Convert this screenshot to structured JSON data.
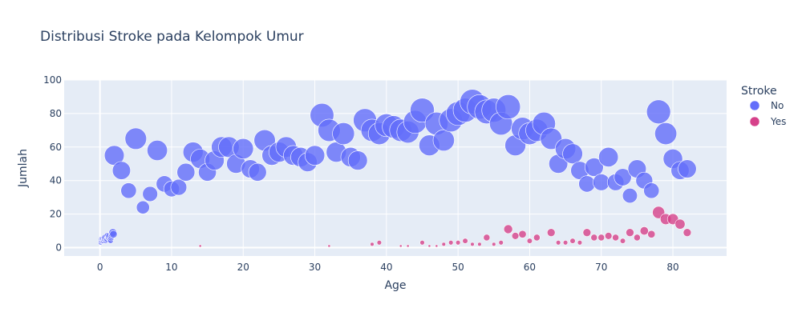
{
  "chart_data": {
    "type": "scatter",
    "title": "Distribusi Stroke pada Kelompok Umur",
    "xlabel": "Age",
    "ylabel": "Jumlah",
    "xlim": [
      -5,
      87.5
    ],
    "ylim": [
      -5,
      100
    ],
    "xticks": [
      0,
      10,
      20,
      30,
      40,
      50,
      60,
      70,
      80
    ],
    "yticks": [
      0,
      20,
      40,
      60,
      80,
      100
    ],
    "grid": true,
    "legend_title": "Stroke",
    "legend_position": "right",
    "series": [
      {
        "name": "No",
        "color": "#636efa",
        "points": [
          [
            0.08,
            3
          ],
          [
            0.16,
            4
          ],
          [
            0.24,
            5
          ],
          [
            0.32,
            4
          ],
          [
            0.4,
            5
          ],
          [
            0.48,
            4
          ],
          [
            0.56,
            5
          ],
          [
            0.64,
            5
          ],
          [
            0.72,
            6
          ],
          [
            0.8,
            4
          ],
          [
            0.88,
            5
          ],
          [
            1,
            5
          ],
          [
            1.08,
            7
          ],
          [
            1.16,
            6
          ],
          [
            1.24,
            6
          ],
          [
            1.32,
            7
          ],
          [
            1.4,
            5
          ],
          [
            1.48,
            4
          ],
          [
            1.56,
            6
          ],
          [
            1.64,
            7
          ],
          [
            1.72,
            8
          ],
          [
            1.8,
            9
          ],
          [
            1.88,
            8
          ],
          [
            2,
            55
          ],
          [
            3,
            46
          ],
          [
            4,
            34
          ],
          [
            5,
            65
          ],
          [
            6,
            24
          ],
          [
            7,
            32
          ],
          [
            8,
            58
          ],
          [
            9,
            38
          ],
          [
            10,
            35
          ],
          [
            11,
            36
          ],
          [
            12,
            45
          ],
          [
            13,
            57
          ],
          [
            14,
            53
          ],
          [
            15,
            45
          ],
          [
            16,
            52
          ],
          [
            17,
            60
          ],
          [
            18,
            60
          ],
          [
            19,
            50
          ],
          [
            20,
            59
          ],
          [
            21,
            47
          ],
          [
            22,
            45
          ],
          [
            23,
            64
          ],
          [
            24,
            55
          ],
          [
            25,
            57
          ],
          [
            26,
            60
          ],
          [
            27,
            55
          ],
          [
            28,
            54
          ],
          [
            29,
            51
          ],
          [
            30,
            55
          ],
          [
            31,
            79
          ],
          [
            32,
            70
          ],
          [
            33,
            57
          ],
          [
            34,
            68
          ],
          [
            35,
            54
          ],
          [
            36,
            52
          ],
          [
            37,
            76
          ],
          [
            38,
            70
          ],
          [
            39,
            68
          ],
          [
            40,
            73
          ],
          [
            41,
            72
          ],
          [
            42,
            70
          ],
          [
            43,
            69
          ],
          [
            44,
            75
          ],
          [
            45,
            82
          ],
          [
            46,
            61
          ],
          [
            47,
            74
          ],
          [
            48,
            64
          ],
          [
            49,
            76
          ],
          [
            50,
            80
          ],
          [
            51,
            82
          ],
          [
            52,
            87
          ],
          [
            53,
            84
          ],
          [
            54,
            81
          ],
          [
            55,
            82
          ],
          [
            56,
            74
          ],
          [
            57,
            84
          ],
          [
            58,
            61
          ],
          [
            59,
            71
          ],
          [
            60,
            68
          ],
          [
            61,
            70
          ],
          [
            62,
            74
          ],
          [
            63,
            65
          ],
          [
            64,
            50
          ],
          [
            65,
            59
          ],
          [
            66,
            56
          ],
          [
            67,
            46
          ],
          [
            68,
            38
          ],
          [
            69,
            48
          ],
          [
            70,
            39
          ],
          [
            71,
            54
          ],
          [
            72,
            39
          ],
          [
            73,
            42
          ],
          [
            74,
            31
          ],
          [
            75,
            47
          ],
          [
            76,
            40
          ],
          [
            77,
            34
          ],
          [
            78,
            81
          ],
          [
            79,
            68
          ],
          [
            80,
            53
          ],
          [
            81,
            46
          ],
          [
            82,
            47
          ]
        ]
      },
      {
        "name": "Yes",
        "color": "#d6418a",
        "points": [
          [
            14,
            1
          ],
          [
            32,
            1
          ],
          [
            38,
            2
          ],
          [
            39,
            3
          ],
          [
            42,
            1
          ],
          [
            43,
            1
          ],
          [
            45,
            3
          ],
          [
            46,
            1
          ],
          [
            47,
            1
          ],
          [
            48,
            2
          ],
          [
            49,
            3
          ],
          [
            50,
            3
          ],
          [
            51,
            4
          ],
          [
            52,
            2
          ],
          [
            53,
            2
          ],
          [
            54,
            6
          ],
          [
            55,
            2
          ],
          [
            56,
            3
          ],
          [
            57,
            11
          ],
          [
            58,
            7
          ],
          [
            59,
            8
          ],
          [
            60,
            4
          ],
          [
            61,
            6
          ],
          [
            63,
            9
          ],
          [
            64,
            3
          ],
          [
            65,
            3
          ],
          [
            66,
            4
          ],
          [
            67,
            3
          ],
          [
            68,
            9
          ],
          [
            69,
            6
          ],
          [
            70,
            6
          ],
          [
            71,
            7
          ],
          [
            72,
            6
          ],
          [
            73,
            4
          ],
          [
            74,
            9
          ],
          [
            75,
            6
          ],
          [
            76,
            10
          ],
          [
            77,
            8
          ],
          [
            78,
            21
          ],
          [
            79,
            17
          ],
          [
            80,
            17
          ],
          [
            81,
            14
          ],
          [
            82,
            9
          ]
        ]
      }
    ]
  }
}
